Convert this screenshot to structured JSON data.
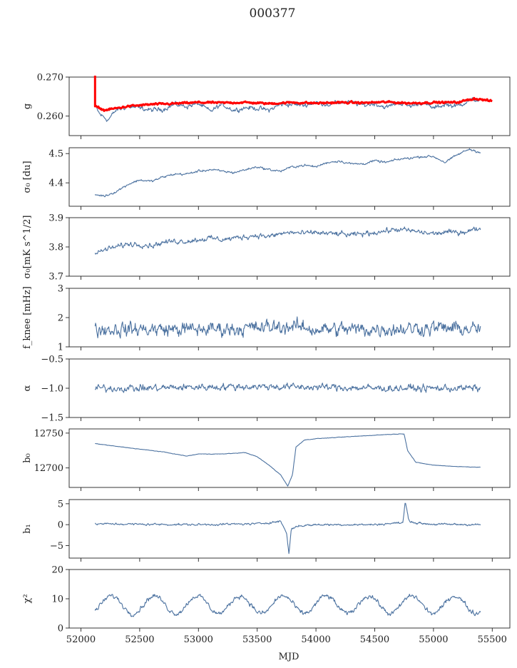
{
  "title": "000377",
  "chart_data": {
    "type": "line",
    "title": "000377",
    "xlabel": "MJD",
    "xlim": [
      51900,
      55650
    ],
    "x_ticks": [
      52000,
      52500,
      53000,
      53500,
      54000,
      54500,
      55000,
      55500
    ],
    "x_data_range": [
      52120,
      55400
    ],
    "series_color": "#4c72a0",
    "overlay_color": "#ff0000",
    "panels": [
      {
        "key": "g",
        "ylabel": "g",
        "ylim": [
          0.255,
          0.27
        ],
        "yticks": [
          0.26,
          0.27
        ],
        "ytick_labels": [
          "0.260",
          "0.270"
        ],
        "series": [
          {
            "name": "",
            "style": "thin",
            "anchors": [
              [
                52120,
                0.2625
              ],
              [
                52160,
                0.2605
              ],
              [
                52230,
                0.259
              ],
              [
                52300,
                0.2615
              ],
              [
                52400,
                0.2625
              ],
              [
                52500,
                0.262
              ],
              [
                52600,
                0.2615
              ],
              [
                52700,
                0.2618
              ],
              [
                52800,
                0.263
              ],
              [
                52900,
                0.2625
              ],
              [
                53000,
                0.2632
              ],
              [
                53100,
                0.2612
              ],
              [
                53200,
                0.263
              ],
              [
                53300,
                0.2615
              ],
              [
                53400,
                0.2622
              ],
              [
                53500,
                0.262
              ],
              [
                53600,
                0.2615
              ],
              [
                53700,
                0.263
              ],
              [
                53800,
                0.263
              ],
              [
                53900,
                0.2628
              ],
              [
                54000,
                0.2635
              ],
              [
                54100,
                0.263
              ],
              [
                54200,
                0.2635
              ],
              [
                54300,
                0.2635
              ],
              [
                54400,
                0.2628
              ],
              [
                54500,
                0.2632
              ],
              [
                54600,
                0.2622
              ],
              [
                54700,
                0.2635
              ],
              [
                54800,
                0.2625
              ],
              [
                54900,
                0.2635
              ],
              [
                55000,
                0.262
              ],
              [
                55100,
                0.263
              ],
              [
                55200,
                0.2625
              ],
              [
                55300,
                0.264
              ],
              [
                55400,
                0.2642
              ]
            ],
            "noise": 0.0006
          },
          {
            "name": "",
            "style": "thick",
            "anchors": [
              [
                52120,
                0.2625
              ],
              [
                52200,
                0.2615
              ],
              [
                52400,
                0.2625
              ],
              [
                52600,
                0.263
              ],
              [
                52800,
                0.2632
              ],
              [
                53000,
                0.2635
              ],
              [
                53200,
                0.2634
              ],
              [
                53400,
                0.2635
              ],
              [
                53600,
                0.2632
              ],
              [
                53800,
                0.2635
              ],
              [
                54000,
                0.2633
              ],
              [
                54200,
                0.2635
              ],
              [
                54400,
                0.2634
              ],
              [
                54600,
                0.2636
              ],
              [
                54800,
                0.2633
              ],
              [
                55000,
                0.2635
              ],
              [
                55200,
                0.2635
              ],
              [
                55350,
                0.2645
              ],
              [
                55500,
                0.2638
              ]
            ],
            "spike": {
              "x": 52120,
              "from": 0.2625,
              "to": 0.2705
            },
            "noise": 0.00025
          }
        ]
      },
      {
        "key": "sigma0_du",
        "ylabel": "σ₀ [du]",
        "ylim": [
          4.32,
          4.52
        ],
        "yticks": [
          4.4,
          4.5
        ],
        "ytick_labels": [
          "4.4",
          "4.5"
        ],
        "series": [
          {
            "name": "",
            "anchors": [
              [
                52120,
                4.36
              ],
              [
                52200,
                4.355
              ],
              [
                52300,
                4.37
              ],
              [
                52400,
                4.395
              ],
              [
                52500,
                4.41
              ],
              [
                52600,
                4.405
              ],
              [
                52700,
                4.42
              ],
              [
                52800,
                4.43
              ],
              [
                52900,
                4.43
              ],
              [
                53000,
                4.44
              ],
              [
                53100,
                4.445
              ],
              [
                53200,
                4.44
              ],
              [
                53300,
                4.435
              ],
              [
                53400,
                4.445
              ],
              [
                53500,
                4.455
              ],
              [
                53600,
                4.445
              ],
              [
                53700,
                4.44
              ],
              [
                53800,
                4.455
              ],
              [
                53900,
                4.46
              ],
              [
                54000,
                4.455
              ],
              [
                54100,
                4.47
              ],
              [
                54200,
                4.475
              ],
              [
                54300,
                4.465
              ],
              [
                54400,
                4.465
              ],
              [
                54500,
                4.475
              ],
              [
                54600,
                4.47
              ],
              [
                54700,
                4.48
              ],
              [
                54800,
                4.485
              ],
              [
                54900,
                4.49
              ],
              [
                55000,
                4.49
              ],
              [
                55100,
                4.47
              ],
              [
                55200,
                4.495
              ],
              [
                55300,
                4.515
              ],
              [
                55400,
                4.505
              ]
            ],
            "noise": 0.004
          }
        ]
      },
      {
        "key": "sigma0_mK",
        "ylabel": "σ₀[mK s^1/2]",
        "ylim": [
          3.7,
          3.9
        ],
        "yticks": [
          3.7,
          3.8,
          3.9
        ],
        "ytick_labels": [
          "3.7",
          "3.8",
          "3.9"
        ],
        "series": [
          {
            "name": "",
            "anchors": [
              [
                52120,
                3.775
              ],
              [
                52200,
                3.79
              ],
              [
                52300,
                3.8
              ],
              [
                52400,
                3.81
              ],
              [
                52500,
                3.81
              ],
              [
                52600,
                3.805
              ],
              [
                52700,
                3.815
              ],
              [
                52800,
                3.82
              ],
              [
                52900,
                3.82
              ],
              [
                53000,
                3.825
              ],
              [
                53100,
                3.83
              ],
              [
                53200,
                3.825
              ],
              [
                53300,
                3.83
              ],
              [
                53400,
                3.835
              ],
              [
                53500,
                3.84
              ],
              [
                53600,
                3.835
              ],
              [
                53700,
                3.845
              ],
              [
                53800,
                3.85
              ],
              [
                53900,
                3.845
              ],
              [
                54000,
                3.85
              ],
              [
                54100,
                3.845
              ],
              [
                54200,
                3.845
              ],
              [
                54300,
                3.84
              ],
              [
                54400,
                3.845
              ],
              [
                54500,
                3.85
              ],
              [
                54600,
                3.855
              ],
              [
                54700,
                3.86
              ],
              [
                54800,
                3.855
              ],
              [
                54900,
                3.85
              ],
              [
                55000,
                3.845
              ],
              [
                55100,
                3.85
              ],
              [
                55200,
                3.85
              ],
              [
                55300,
                3.855
              ],
              [
                55400,
                3.865
              ]
            ],
            "noise": 0.009
          }
        ]
      },
      {
        "key": "fknee",
        "ylabel": "f_knee [mHz]",
        "ylim": [
          1,
          3
        ],
        "yticks": [
          1,
          2,
          3
        ],
        "ytick_labels": [
          "1",
          "2",
          "3"
        ],
        "series": [
          {
            "name": "",
            "anchors": [
              [
                52120,
                1.6
              ],
              [
                52500,
                1.6
              ],
              [
                53000,
                1.6
              ],
              [
                53500,
                1.65
              ],
              [
                53800,
                1.7
              ],
              [
                54000,
                1.6
              ],
              [
                54500,
                1.6
              ],
              [
                55000,
                1.65
              ],
              [
                55400,
                1.6
              ]
            ],
            "noise": 0.25
          }
        ]
      },
      {
        "key": "alpha",
        "ylabel": "α",
        "ylim": [
          -1.5,
          -0.5
        ],
        "yticks": [
          -1.5,
          -1.0,
          -0.5
        ],
        "ytick_labels": [
          "−1.5",
          "−1.0",
          "−0.5"
        ],
        "series": [
          {
            "name": "",
            "anchors": [
              [
                52120,
                -1.0
              ],
              [
                52500,
                -1.0
              ],
              [
                53000,
                -0.98
              ],
              [
                53500,
                -0.97
              ],
              [
                54000,
                -0.98
              ],
              [
                54500,
                -1.0
              ],
              [
                55000,
                -1.0
              ],
              [
                55400,
                -1.0
              ]
            ],
            "noise": 0.06
          }
        ]
      },
      {
        "key": "b0",
        "ylabel": "b₀",
        "ylim": [
          12672,
          12756
        ],
        "yticks": [
          12700,
          12750
        ],
        "ytick_labels": [
          "12700",
          "12750"
        ],
        "series": [
          {
            "name": "",
            "anchors": [
              [
                52120,
                12735
              ],
              [
                52300,
                12731
              ],
              [
                52500,
                12727
              ],
              [
                52700,
                12723
              ],
              [
                52900,
                12717
              ],
              [
                53000,
                12720
              ],
              [
                53200,
                12720
              ],
              [
                53400,
                12722
              ],
              [
                53500,
                12716
              ],
              [
                53600,
                12704
              ],
              [
                53700,
                12690
              ],
              [
                53760,
                12674
              ],
              [
                53800,
                12690
              ],
              [
                53830,
                12730
              ],
              [
                53900,
                12740
              ],
              [
                54000,
                12742
              ],
              [
                54200,
                12744
              ],
              [
                54400,
                12746
              ],
              [
                54600,
                12748
              ],
              [
                54750,
                12749
              ],
              [
                54780,
                12725
              ],
              [
                54850,
                12708
              ],
              [
                55000,
                12704
              ],
              [
                55200,
                12702
              ],
              [
                55400,
                12701
              ]
            ],
            "noise": 0.3
          }
        ]
      },
      {
        "key": "b1",
        "ylabel": "b₁",
        "ylim": [
          -8,
          6
        ],
        "yticks": [
          -5,
          0,
          5
        ],
        "ytick_labels": [
          "−5",
          "0",
          "5"
        ],
        "series": [
          {
            "name": "",
            "anchors": [
              [
                52120,
                0.2
              ],
              [
                52500,
                0.1
              ],
              [
                53000,
                0.0
              ],
              [
                53500,
                0.2
              ],
              [
                53700,
                0.8
              ],
              [
                53750,
                -2.0
              ],
              [
                53770,
                -7.0
              ],
              [
                53790,
                -1.0
              ],
              [
                53850,
                -0.3
              ],
              [
                54000,
                0.0
              ],
              [
                54500,
                0.0
              ],
              [
                54740,
                0.5
              ],
              [
                54760,
                5.5
              ],
              [
                54790,
                1.0
              ],
              [
                54850,
                0.4
              ],
              [
                55000,
                0.1
              ],
              [
                55400,
                0.0
              ]
            ],
            "noise": 0.25
          }
        ]
      },
      {
        "key": "chi2",
        "ylabel": "χ²",
        "ylim": [
          0,
          20
        ],
        "yticks": [
          0,
          10,
          20
        ],
        "ytick_labels": [
          "0",
          "10",
          "20"
        ],
        "series": [
          {
            "name": "",
            "periodic": {
              "base": 8,
              "amp": 3,
              "period": 365,
              "phase": 52260
            },
            "noise": 0.8
          }
        ]
      }
    ]
  }
}
